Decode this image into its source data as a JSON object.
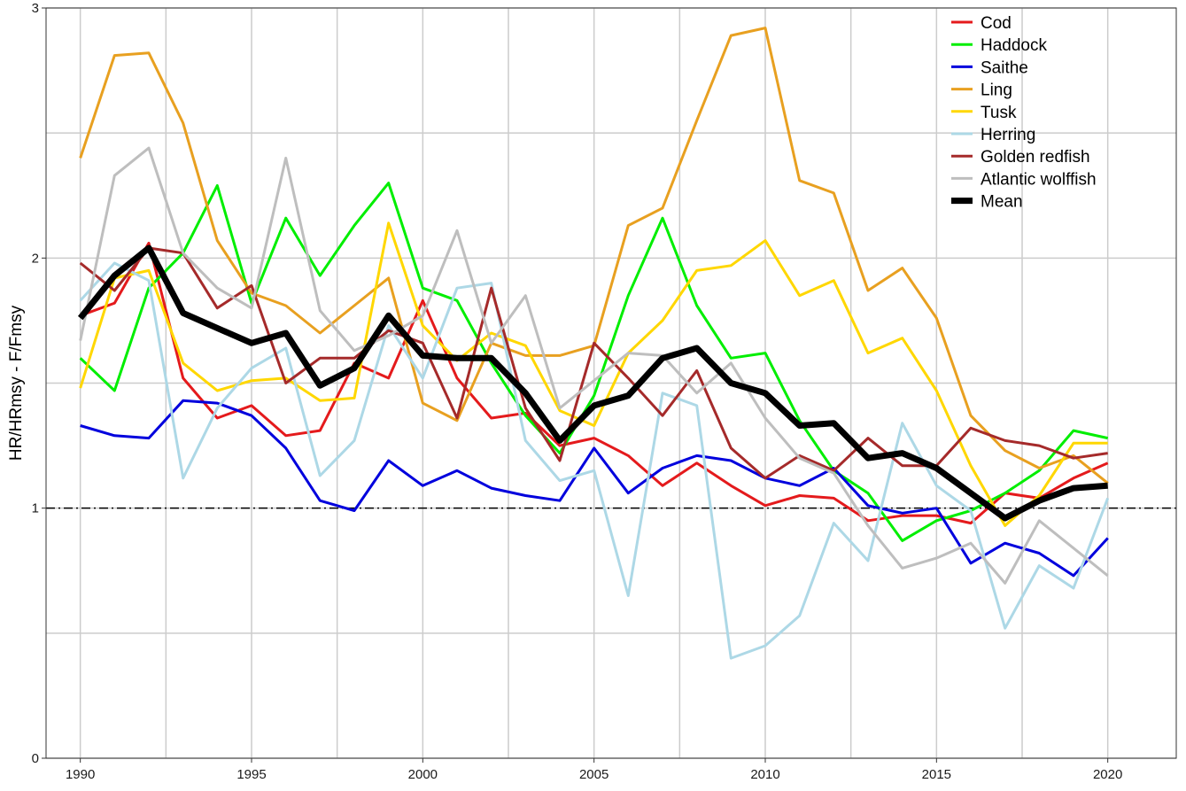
{
  "chart_data": {
    "type": "line",
    "title": "",
    "xlabel": "",
    "ylabel": "HR/HRmsy - F/Fmsy",
    "xlim": [
      1989.0,
      2022.0
    ],
    "ylim": [
      0,
      3
    ],
    "x_ticks": [
      1990,
      1995,
      2000,
      2005,
      2010,
      2015,
      2020
    ],
    "x_tick_labels": [
      "1990",
      "1995",
      "2000",
      "2005",
      "2010",
      "2015",
      "2020"
    ],
    "y_ticks": [
      0,
      1,
      2,
      3
    ],
    "y_tick_labels": [
      "0",
      "1",
      "2",
      "3"
    ],
    "x_minor_gridlines": [
      1992.5,
      1997.5,
      2002.5,
      2007.5,
      2012.5,
      2017.5
    ],
    "y_minor_gridlines": [
      0.5,
      1.5,
      2.5
    ],
    "grid": true,
    "reference_line": {
      "y": 1,
      "style": "dashdot",
      "color": "#000000"
    },
    "legend_position": "top-right",
    "x": [
      1990,
      1991,
      1992,
      1993,
      1994,
      1995,
      1996,
      1997,
      1998,
      1999,
      2000,
      2001,
      2002,
      2003,
      2004,
      2005,
      2006,
      2007,
      2008,
      2009,
      2010,
      2011,
      2012,
      2013,
      2014,
      2015,
      2016,
      2017,
      2018,
      2019,
      2020
    ],
    "series": [
      {
        "name": "Cod",
        "color": "#e41a1c",
        "width": 3,
        "values": [
          1.77,
          1.82,
          2.06,
          1.52,
          1.36,
          1.41,
          1.29,
          1.31,
          1.58,
          1.52,
          1.83,
          1.52,
          1.36,
          1.38,
          1.25,
          1.28,
          1.21,
          1.09,
          1.18,
          1.09,
          1.01,
          1.05,
          1.04,
          0.95,
          0.97,
          0.97,
          0.94,
          1.06,
          1.04,
          1.12,
          1.18
        ]
      },
      {
        "name": "Haddock",
        "color": "#00ee00",
        "width": 3,
        "values": [
          1.6,
          1.47,
          1.88,
          2.02,
          2.29,
          1.82,
          2.16,
          1.93,
          2.13,
          2.3,
          1.88,
          1.83,
          1.58,
          1.37,
          1.22,
          1.45,
          1.85,
          2.16,
          1.81,
          1.6,
          1.62,
          1.35,
          1.15,
          1.06,
          0.87,
          0.95,
          0.99,
          1.06,
          1.15,
          1.31,
          1.28
        ]
      },
      {
        "name": "Saithe",
        "color": "#0000dd",
        "width": 3,
        "values": [
          1.33,
          1.29,
          1.28,
          1.43,
          1.42,
          1.37,
          1.24,
          1.03,
          0.99,
          1.19,
          1.09,
          1.15,
          1.08,
          1.05,
          1.03,
          1.24,
          1.06,
          1.16,
          1.21,
          1.19,
          1.12,
          1.09,
          1.16,
          1.01,
          0.98,
          1.0,
          0.78,
          0.86,
          0.82,
          0.73,
          0.88
        ]
      },
      {
        "name": "Ling",
        "color": "#e8a020",
        "width": 3,
        "values": [
          2.4,
          2.81,
          2.82,
          2.54,
          2.07,
          1.86,
          1.81,
          1.7,
          1.81,
          1.92,
          1.42,
          1.35,
          1.66,
          1.61,
          1.61,
          1.65,
          2.13,
          2.2,
          2.55,
          2.89,
          2.92,
          2.31,
          2.26,
          1.87,
          1.96,
          1.76,
          1.37,
          1.23,
          1.16,
          1.21,
          1.1
        ]
      },
      {
        "name": "Tusk",
        "color": "#ffd700",
        "width": 3,
        "values": [
          1.48,
          1.92,
          1.95,
          1.58,
          1.47,
          1.51,
          1.52,
          1.43,
          1.44,
          2.14,
          1.73,
          1.59,
          1.7,
          1.65,
          1.39,
          1.33,
          1.62,
          1.75,
          1.95,
          1.97,
          2.07,
          1.85,
          1.91,
          1.62,
          1.68,
          1.47,
          1.17,
          0.93,
          1.05,
          1.26,
          1.26
        ]
      },
      {
        "name": "Herring",
        "color": "#add8e6",
        "width": 3,
        "values": [
          1.83,
          1.98,
          1.91,
          1.12,
          1.4,
          1.56,
          1.64,
          1.13,
          1.27,
          1.73,
          1.52,
          1.88,
          1.9,
          1.27,
          1.11,
          1.15,
          0.65,
          1.46,
          1.41,
          0.4,
          0.45,
          0.57,
          0.94,
          0.79,
          1.34,
          1.09,
          0.99,
          0.52,
          0.77,
          0.68,
          1.04
        ]
      },
      {
        "name": "Golden redfish",
        "color": "#a52a2a",
        "width": 3,
        "values": [
          1.98,
          1.87,
          2.04,
          2.02,
          1.8,
          1.89,
          1.5,
          1.6,
          1.6,
          1.71,
          1.66,
          1.36,
          1.88,
          1.4,
          1.19,
          1.66,
          1.52,
          1.37,
          1.55,
          1.24,
          1.12,
          1.21,
          1.15,
          1.28,
          1.17,
          1.17,
          1.32,
          1.27,
          1.25,
          1.2,
          1.22
        ]
      },
      {
        "name": "Atlantic wolffish",
        "color": "#bebebe",
        "width": 3,
        "values": [
          1.67,
          2.33,
          2.44,
          2.02,
          1.88,
          1.8,
          2.4,
          1.79,
          1.63,
          1.69,
          1.77,
          2.11,
          1.66,
          1.85,
          1.4,
          1.51,
          1.62,
          1.61,
          1.46,
          1.58,
          1.36,
          1.2,
          1.14,
          0.93,
          0.76,
          0.8,
          0.86,
          0.7,
          0.95,
          0.84,
          0.73
        ]
      },
      {
        "name": "Mean",
        "color": "#000000",
        "width": 7,
        "values": [
          1.76,
          1.93,
          2.04,
          1.78,
          1.72,
          1.66,
          1.7,
          1.49,
          1.56,
          1.77,
          1.61,
          1.6,
          1.6,
          1.46,
          1.27,
          1.41,
          1.45,
          1.6,
          1.64,
          1.5,
          1.46,
          1.33,
          1.34,
          1.2,
          1.22,
          1.16,
          1.06,
          0.96,
          1.03,
          1.08,
          1.09
        ]
      }
    ]
  }
}
